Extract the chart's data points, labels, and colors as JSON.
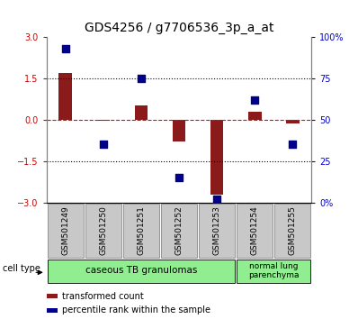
{
  "title": "GDS4256 / g7706536_3p_a_at",
  "samples": [
    "GSM501249",
    "GSM501250",
    "GSM501251",
    "GSM501252",
    "GSM501253",
    "GSM501254",
    "GSM501255"
  ],
  "transformed_count": [
    1.7,
    -0.05,
    0.5,
    -0.8,
    -2.7,
    0.3,
    -0.15
  ],
  "percentile_rank": [
    93,
    35,
    75,
    15,
    2,
    62,
    35
  ],
  "ylim_left": [
    -3,
    3
  ],
  "ylim_right": [
    0,
    100
  ],
  "yticks_left": [
    -3,
    -1.5,
    0,
    1.5,
    3
  ],
  "yticks_right": [
    0,
    25,
    50,
    75,
    100
  ],
  "ytick_labels_right": [
    "0%",
    "25",
    "50",
    "75",
    "100%"
  ],
  "bar_color": "#8B1A1A",
  "dot_color": "#00008B",
  "group1_label": "caseous TB granulomas",
  "group1_count": 5,
  "group2_label": "normal lung\nparenchyma",
  "group2_count": 2,
  "group_color": "#90EE90",
  "cell_type_label": "cell type",
  "legend_red_label": "transformed count",
  "legend_blue_label": "percentile rank within the sample",
  "tick_label_color_left": "#CC0000",
  "tick_label_color_right": "#0000CC",
  "bar_width": 0.35,
  "dot_size": 40,
  "title_fontsize": 10,
  "tick_fontsize": 7,
  "label_fontsize": 7,
  "xtick_box_color": "#C8C8C8",
  "xtick_box_edge": "#888888"
}
